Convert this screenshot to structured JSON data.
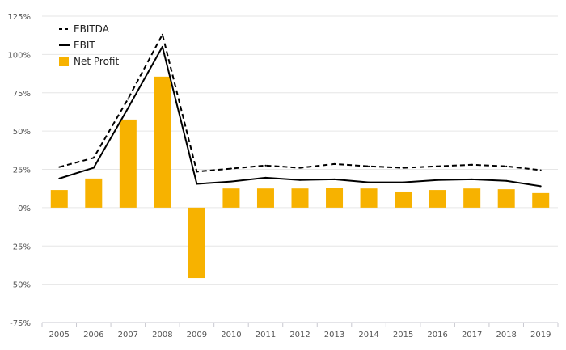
{
  "chart_data": {
    "type": "bar",
    "categories": [
      "2005",
      "2006",
      "2007",
      "2008",
      "2009",
      "2010",
      "2011",
      "2012",
      "2013",
      "2014",
      "2015",
      "2016",
      "2017",
      "2018",
      "2019"
    ],
    "series": [
      {
        "name": "EBITDA",
        "type": "line",
        "style": "dashed",
        "color": "#000000",
        "values": [
          26.5,
          32.5,
          71,
          113,
          23.5,
          25.5,
          27.5,
          26,
          28.5,
          27,
          26,
          27,
          28,
          27,
          24.5
        ]
      },
      {
        "name": "EBIT",
        "type": "line",
        "style": "solid",
        "color": "#000000",
        "values": [
          19,
          26,
          65,
          105,
          15.5,
          17,
          19.5,
          18,
          18.5,
          16.5,
          16.5,
          18,
          18.5,
          17.5,
          14
        ]
      },
      {
        "name": "Net Profit",
        "type": "bar",
        "color": "#f7b200",
        "values": [
          11.5,
          19,
          57.5,
          85.5,
          -46,
          12.5,
          12.5,
          12.5,
          13,
          12.5,
          10.5,
          11.5,
          12.5,
          12,
          9.5
        ]
      }
    ],
    "yticks": [
      "125%",
      "100%",
      "75%",
      "50%",
      "25%",
      "0%",
      "-25%",
      "-50%",
      "-75%"
    ],
    "ylim": [
      -75,
      125
    ],
    "grid": true,
    "legend": "top-left"
  }
}
